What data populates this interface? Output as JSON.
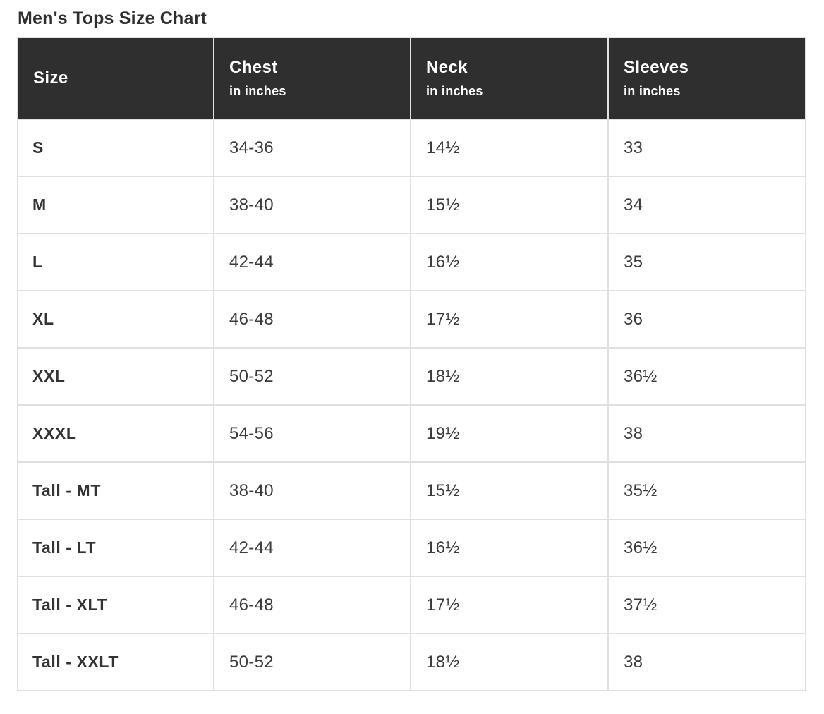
{
  "title": "Men's Tops Size Chart",
  "colors": {
    "header_bg": "#2f2f2f",
    "header_text": "#ffffff",
    "body_text": "#3b3b3b",
    "title_text": "#2e2e2e",
    "border": "#e0e0e0"
  },
  "chart_data": {
    "type": "table",
    "title": "Men's Tops Size Chart",
    "columns": [
      {
        "label": "Size",
        "sublabel": ""
      },
      {
        "label": "Chest",
        "sublabel": "in inches"
      },
      {
        "label": "Neck",
        "sublabel": "in inches"
      },
      {
        "label": "Sleeves",
        "sublabel": "in inches"
      }
    ],
    "rows": [
      {
        "size": "S",
        "chest": "34-36",
        "neck": "14½",
        "sleeves": "33"
      },
      {
        "size": "M",
        "chest": "38-40",
        "neck": "15½",
        "sleeves": "34"
      },
      {
        "size": "L",
        "chest": "42-44",
        "neck": "16½",
        "sleeves": "35"
      },
      {
        "size": "XL",
        "chest": "46-48",
        "neck": "17½",
        "sleeves": "36"
      },
      {
        "size": "XXL",
        "chest": "50-52",
        "neck": "18½",
        "sleeves": "36½"
      },
      {
        "size": "XXXL",
        "chest": "54-56",
        "neck": "19½",
        "sleeves": "38"
      },
      {
        "size": "Tall - MT",
        "chest": "38-40",
        "neck": "15½",
        "sleeves": "35½"
      },
      {
        "size": "Tall - LT",
        "chest": "42-44",
        "neck": "16½",
        "sleeves": "36½"
      },
      {
        "size": "Tall - XLT",
        "chest": "46-48",
        "neck": "17½",
        "sleeves": "37½"
      },
      {
        "size": "Tall - XXLT",
        "chest": "50-52",
        "neck": "18½",
        "sleeves": "38"
      }
    ]
  }
}
